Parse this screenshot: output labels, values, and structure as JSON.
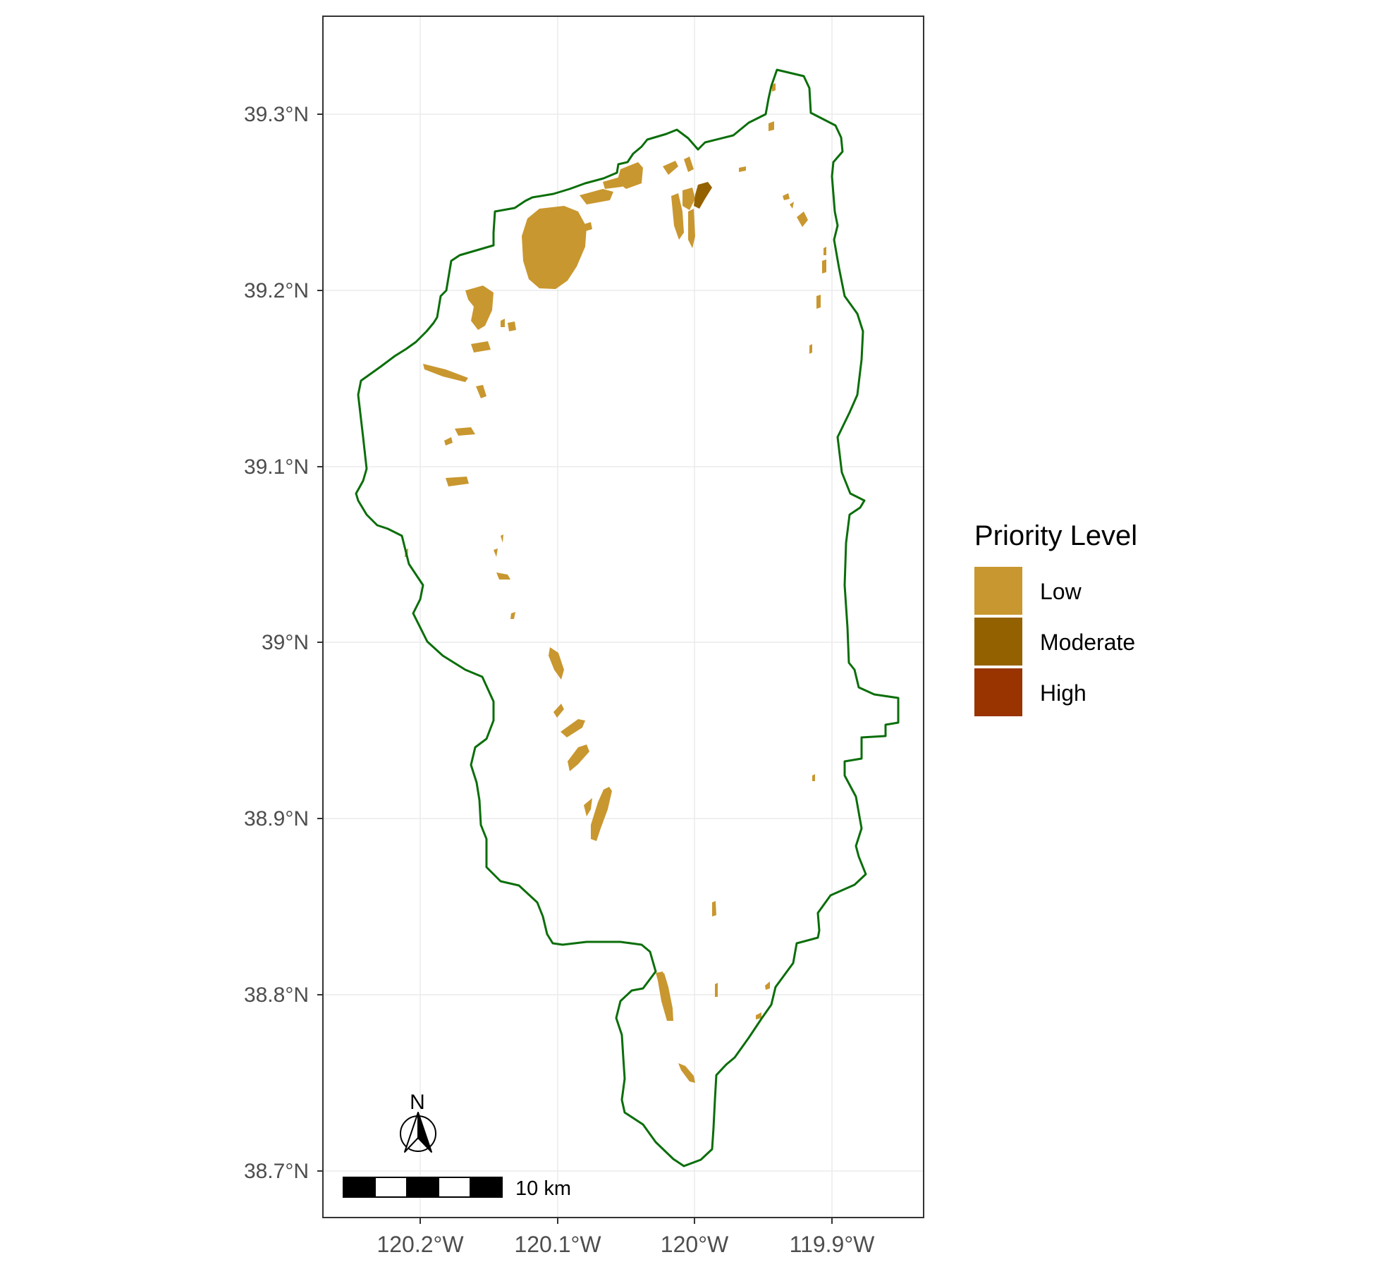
{
  "map": {
    "y_axis_labels": [
      "39.3°N",
      "39.2°N",
      "39.1°N",
      "39°N",
      "38.9°N",
      "38.8°N",
      "38.7°N"
    ],
    "x_axis_labels": [
      "120.2°W",
      "120.1°W",
      "120°W",
      "119.9°W"
    ],
    "grid": true,
    "boundary_color": "#0a6e0a"
  },
  "legend": {
    "title": "Priority Level",
    "placement": "right",
    "items": [
      {
        "label": "Low",
        "color": "#c9972f"
      },
      {
        "label": "Moderate",
        "color": "#946100"
      },
      {
        "label": "High",
        "color": "#993300"
      }
    ]
  },
  "scale_bar": {
    "label": "10 km"
  },
  "north_arrow": {
    "label": "N",
    "icon": "north-arrow-icon"
  }
}
